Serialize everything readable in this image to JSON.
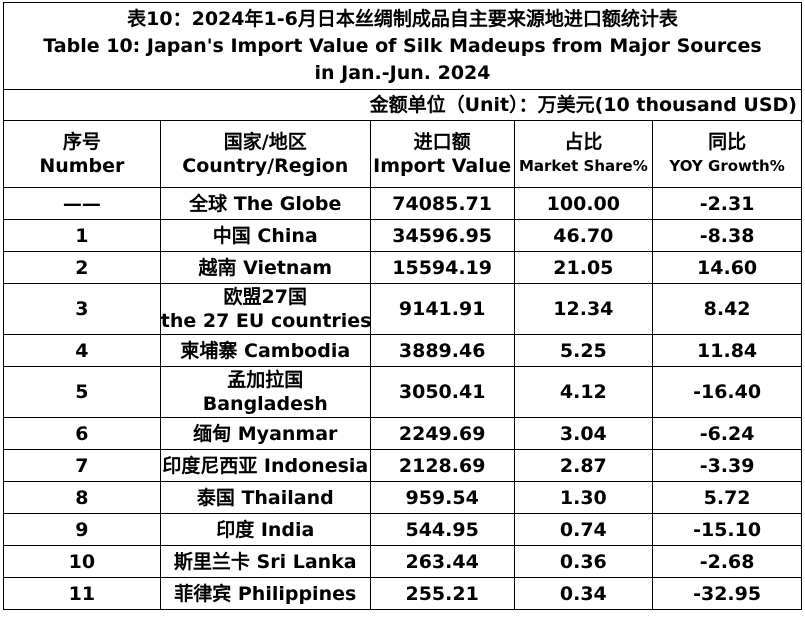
{
  "title": {
    "zh": "表10：2024年1-6月日本丝绸制成品自主要来源地进口额统计表",
    "en_line1": "Table 10: Japan's Import Value of Silk Madeups from Major Sources",
    "en_line2": "in Jan.-Jun. 2024"
  },
  "unit": "金额单位（Unit）：万美元(10 thousand USD)",
  "headers": [
    {
      "zh": "序号",
      "en": "Number"
    },
    {
      "zh": "国家/地区",
      "en": "Country/Region"
    },
    {
      "zh": "进口额",
      "en": "Import Value"
    },
    {
      "zh": "占比",
      "en": "Market Share%"
    },
    {
      "zh": "同比",
      "en": "YOY Growth%"
    }
  ],
  "rows": [
    {
      "no": "——",
      "region": "全球 The Globe",
      "region2": "",
      "value": "74085.71",
      "share": "100.00",
      "yoy": "-2.31"
    },
    {
      "no": "1",
      "region": "中国 China",
      "region2": "",
      "value": "34596.95",
      "share": "46.70",
      "yoy": "-8.38"
    },
    {
      "no": "2",
      "region": "越南 Vietnam",
      "region2": "",
      "value": "15594.19",
      "share": "21.05",
      "yoy": "14.60"
    },
    {
      "no": "3",
      "region": "欧盟27国",
      "region2": "the 27 EU countries",
      "value": "9141.91",
      "share": "12.34",
      "yoy": "8.42"
    },
    {
      "no": "4",
      "region": "柬埔寨 Cambodia",
      "region2": "",
      "value": "3889.46",
      "share": "5.25",
      "yoy": "11.84"
    },
    {
      "no": "5",
      "region": "孟加拉国",
      "region2": "Bangladesh",
      "value": "3050.41",
      "share": "4.12",
      "yoy": "-16.40"
    },
    {
      "no": "6",
      "region": "缅甸 Myanmar",
      "region2": "",
      "value": "2249.69",
      "share": "3.04",
      "yoy": "-6.24"
    },
    {
      "no": "7",
      "region": "印度尼西亚 Indonesia",
      "region2": "",
      "value": "2128.69",
      "share": "2.87",
      "yoy": "-3.39"
    },
    {
      "no": "8",
      "region": "泰国 Thailand",
      "region2": "",
      "value": "959.54",
      "share": "1.30",
      "yoy": "5.72"
    },
    {
      "no": "9",
      "region": "印度 India",
      "region2": "",
      "value": "544.95",
      "share": "0.74",
      "yoy": "-15.10"
    },
    {
      "no": "10",
      "region": "斯里兰卡 Sri Lanka",
      "region2": "",
      "value": "263.44",
      "share": "0.36",
      "yoy": "-2.68"
    },
    {
      "no": "11",
      "region": "菲律宾 Philippines",
      "region2": "",
      "value": "255.21",
      "share": "0.34",
      "yoy": "-32.95"
    }
  ]
}
